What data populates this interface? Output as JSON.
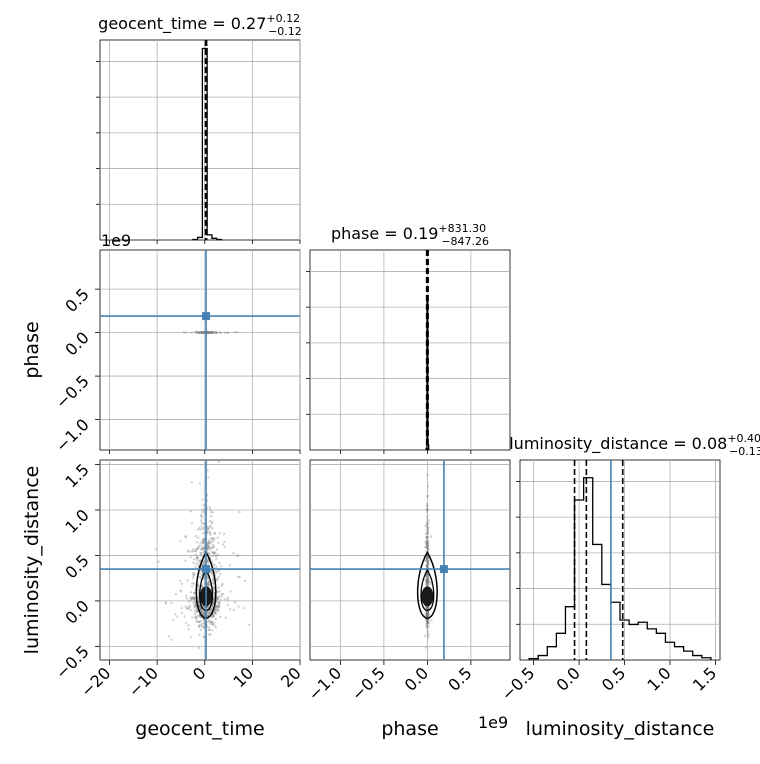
{
  "colors": {
    "truth": "#4682b4",
    "hist": "#000000",
    "grid": "#b0b0b0",
    "scatter": "#7f7f7f"
  },
  "chart_data": {
    "type": "corner",
    "parameters": [
      "geocent_time",
      "phase",
      "luminosity_distance"
    ],
    "truths": {
      "geocent_time": 0.27,
      "phase": 0.19,
      "luminosity_distance": 0.35
    },
    "scale_note": {
      "geocent_time_phase": "1e9",
      "phase_x": "1e9"
    },
    "axis_labels": {
      "x": [
        "geocent_time",
        "phase",
        "luminosity_distance"
      ],
      "y": [
        "phase",
        "luminosity_distance"
      ]
    },
    "ticks": {
      "geocent_time": {
        "range": [
          -22,
          20
        ],
        "values": [
          -20,
          -10,
          0,
          10,
          20
        ],
        "labels": [
          "−20",
          "−10",
          "0",
          "10",
          "20"
        ]
      },
      "phase": {
        "range": [
          -1.35,
          0.95
        ],
        "values": [
          -1.0,
          -0.5,
          0.0,
          0.5
        ],
        "labels": [
          "−1.0",
          "−0.5",
          "0.0",
          "0.5"
        ]
      },
      "luminosity_distance": {
        "range": [
          -0.65,
          1.55
        ],
        "values": [
          -0.5,
          0.0,
          0.5,
          1.0,
          1.5
        ],
        "labels": [
          "−0.5",
          "0.0",
          "0.5",
          "1.0",
          "1.5"
        ]
      }
    },
    "marginals": [
      {
        "param": "geocent_time",
        "title_main": "geocent_time = 0.27",
        "title_sup": "+0.12",
        "title_sub": "−0.12",
        "median": 0.27,
        "quantiles": [
          0.15,
          0.27,
          0.39
        ],
        "bins": [
          -2.5,
          -1.5,
          -0.5,
          0.5,
          1.5,
          2.5,
          3.5
        ],
        "counts": [
          0.1,
          0.6,
          45.0,
          1.2,
          0.4,
          0.1
        ],
        "ymax": 47
      },
      {
        "param": "phase",
        "title_main": "phase = 0.19",
        "title_sup": "+831.30",
        "title_sub": "−847.26",
        "median": 0.0,
        "quantiles": [
          -0.0085,
          0.0,
          0.0083
        ],
        "bins": [
          -0.015,
          -0.005,
          0.005,
          0.015
        ],
        "counts": [
          1.0,
          100.0,
          3.0
        ],
        "ymax": 130
      },
      {
        "param": "luminosity_distance",
        "title_main": "luminosity_distance = 0.08",
        "title_sup": "+0.40",
        "title_sub": "−0.13",
        "median": 0.08,
        "quantiles": [
          -0.05,
          0.08,
          0.48
        ],
        "bins": [
          -0.55,
          -0.45,
          -0.35,
          -0.25,
          -0.15,
          -0.05,
          0.05,
          0.15,
          0.25,
          0.35,
          0.45,
          0.55,
          0.65,
          0.75,
          0.85,
          0.95,
          1.05,
          1.15,
          1.25,
          1.35,
          1.45
        ],
        "counts": [
          0.3,
          1.0,
          3.0,
          6.0,
          12.0,
          36.0,
          41.0,
          26.0,
          17.0,
          13.0,
          9.0,
          8.0,
          8.5,
          7.0,
          6.0,
          4.0,
          3.0,
          2.0,
          1.0,
          0.5
        ],
        "ymax": 45
      }
    ]
  }
}
